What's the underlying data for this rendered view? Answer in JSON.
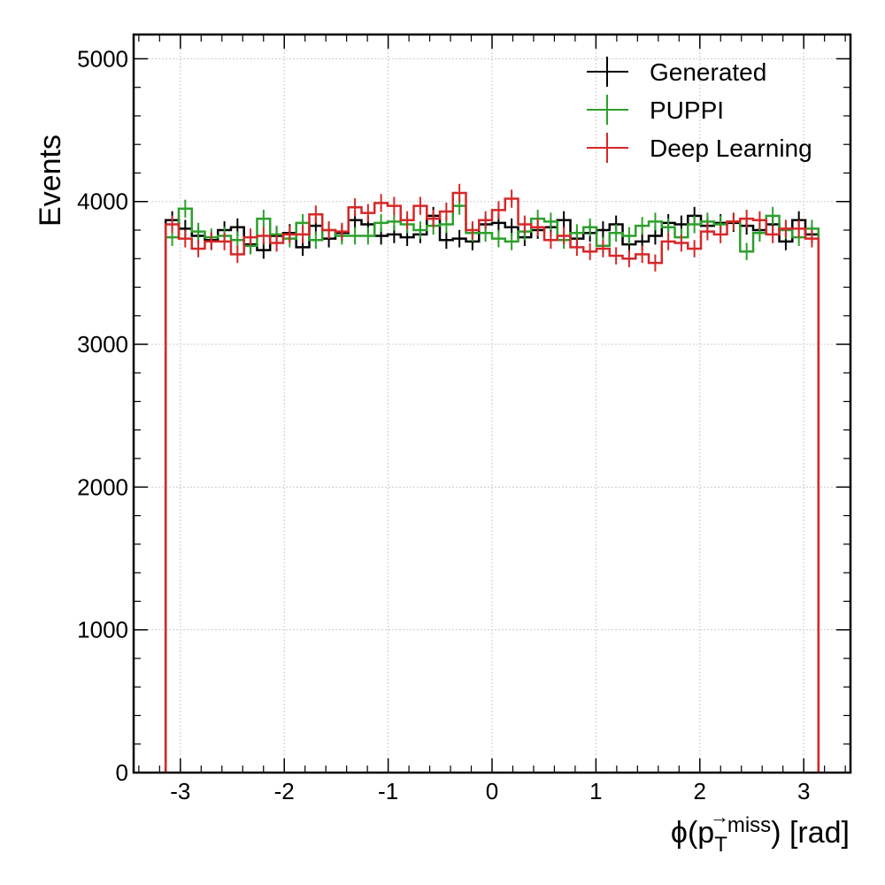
{
  "chart_data": {
    "type": "step-histogram",
    "xlabel_main": "ϕ(p",
    "xlabel_arrow": "→",
    "xlabel_sub": "T",
    "xlabel_sup": "miss",
    "xlabel_tail": ") [rad]",
    "ylabel": "Events",
    "xlim": [
      -3.45,
      3.45
    ],
    "ylim": [
      0,
      5170
    ],
    "x_ticks": [
      -3,
      -2,
      -1,
      0,
      1,
      2,
      3
    ],
    "x_tick_labels": [
      "-3",
      "-2",
      "-1",
      "0",
      "1",
      "2",
      "3"
    ],
    "y_ticks": [
      0,
      1000,
      2000,
      3000,
      4000,
      5000
    ],
    "y_tick_labels": [
      "0",
      "1000",
      "2000",
      "3000",
      "4000",
      "5000"
    ],
    "grid": true,
    "legend_position": "top-right",
    "bin_range": [
      -3.1416,
      3.1416
    ],
    "n_bins": 50,
    "series": [
      {
        "name": "Generated",
        "color": "#000000",
        "values": [
          3870,
          3810,
          3760,
          3730,
          3800,
          3820,
          3700,
          3660,
          3760,
          3780,
          3680,
          3830,
          3740,
          3780,
          3870,
          3840,
          3760,
          3770,
          3750,
          3770,
          3900,
          3730,
          3740,
          3720,
          3840,
          3850,
          3820,
          3750,
          3800,
          3820,
          3870,
          3740,
          3780,
          3800,
          3840,
          3700,
          3720,
          3760,
          3850,
          3840,
          3900,
          3830,
          3850,
          3850,
          3830,
          3800,
          3840,
          3720,
          3870,
          3770
        ]
      },
      {
        "name": "PUPPI",
        "color": "#2ca02c",
        "values": [
          3750,
          3950,
          3790,
          3750,
          3760,
          3730,
          3690,
          3880,
          3770,
          3740,
          3850,
          3730,
          3800,
          3760,
          3760,
          3760,
          3850,
          3860,
          3840,
          3800,
          3830,
          3840,
          3970,
          3780,
          3780,
          3740,
          3720,
          3790,
          3880,
          3860,
          3730,
          3780,
          3820,
          3690,
          3780,
          3760,
          3830,
          3860,
          3820,
          3750,
          3840,
          3860,
          3840,
          3860,
          3650,
          3780,
          3900,
          3800,
          3750,
          3810
        ]
      },
      {
        "name": "Deep Learning",
        "color": "#d62728",
        "values": [
          3840,
          3740,
          3670,
          3720,
          3720,
          3630,
          3750,
          3760,
          3710,
          3770,
          3770,
          3910,
          3800,
          3790,
          3960,
          3920,
          3990,
          3970,
          3870,
          3970,
          3880,
          3930,
          4060,
          3800,
          3870,
          3940,
          4020,
          3840,
          3820,
          3730,
          3760,
          3680,
          3650,
          3670,
          3620,
          3600,
          3630,
          3570,
          3720,
          3710,
          3670,
          3790,
          3770,
          3860,
          3880,
          3870,
          3770,
          3810,
          3810,
          3740
        ]
      }
    ]
  }
}
